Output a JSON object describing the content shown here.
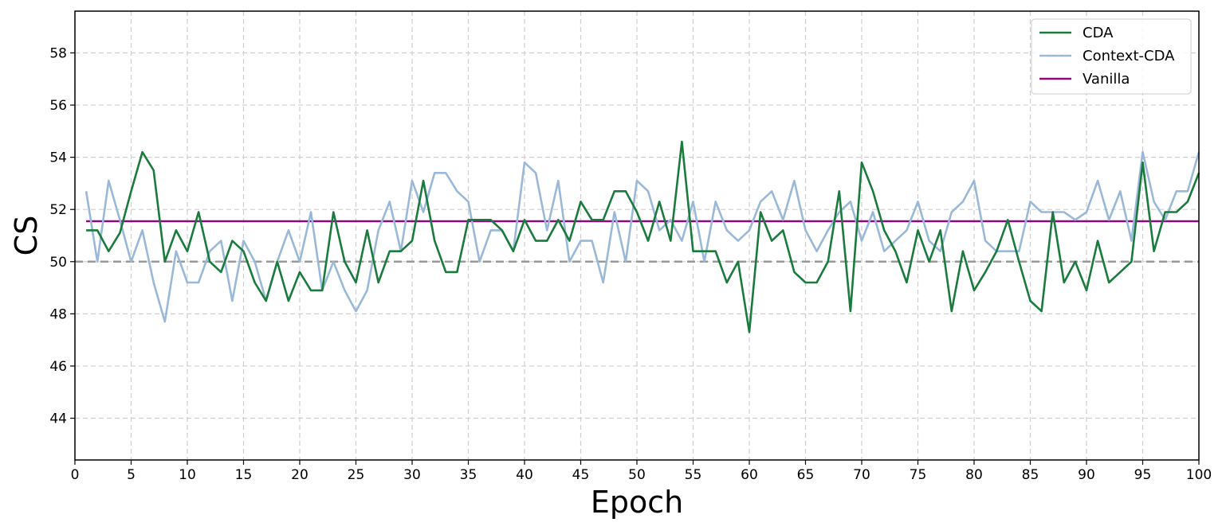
{
  "chart_data": {
    "type": "line",
    "xlabel": "Epoch",
    "ylabel": "CS",
    "xlim": [
      0,
      100
    ],
    "ylim": [
      42.4,
      59.6
    ],
    "xticks": [
      0,
      5,
      10,
      15,
      20,
      25,
      30,
      35,
      40,
      45,
      50,
      55,
      60,
      65,
      70,
      75,
      80,
      85,
      90,
      95,
      100
    ],
    "yticks": [
      44,
      46,
      48,
      50,
      52,
      54,
      56,
      58
    ],
    "grid": true,
    "legend_position": "top-right",
    "reference_line": {
      "y": 50,
      "style": "dashed",
      "color": "#999999"
    },
    "series": [
      {
        "name": "CDA",
        "color": "#1b7a3e",
        "x": [
          1,
          2,
          3,
          4,
          5,
          6,
          7,
          8,
          9,
          10,
          11,
          12,
          13,
          14,
          15,
          16,
          17,
          18,
          19,
          20,
          21,
          22,
          23,
          24,
          25,
          26,
          27,
          28,
          29,
          30,
          31,
          32,
          33,
          34,
          35,
          36,
          37,
          38,
          39,
          40,
          41,
          42,
          43,
          44,
          45,
          46,
          47,
          48,
          49,
          50,
          51,
          52,
          53,
          54,
          55,
          56,
          57,
          58,
          59,
          60,
          61,
          62,
          63,
          64,
          65,
          66,
          67,
          68,
          69,
          70,
          71,
          72,
          73,
          74,
          75,
          76,
          77,
          78,
          79,
          80,
          81,
          82,
          83,
          84,
          85,
          86,
          87,
          88,
          89,
          90,
          91,
          92,
          93,
          94,
          95,
          96,
          97,
          98,
          99,
          100
        ],
        "y": [
          51.2,
          51.2,
          50.4,
          51.1,
          52.7,
          54.2,
          53.5,
          50.0,
          51.2,
          50.4,
          51.9,
          50.0,
          49.6,
          50.8,
          50.4,
          49.2,
          48.5,
          50.0,
          48.5,
          49.6,
          48.9,
          48.9,
          51.9,
          50.0,
          49.2,
          51.2,
          49.2,
          50.4,
          50.4,
          50.8,
          53.1,
          50.8,
          49.6,
          49.6,
          51.6,
          51.6,
          51.6,
          51.2,
          50.4,
          51.6,
          50.8,
          50.8,
          51.6,
          50.8,
          52.3,
          51.6,
          51.6,
          52.7,
          52.7,
          51.9,
          50.8,
          52.3,
          50.8,
          54.6,
          50.4,
          50.4,
          50.4,
          49.2,
          50.0,
          47.3,
          51.9,
          50.8,
          51.2,
          49.6,
          49.2,
          49.2,
          50.0,
          52.7,
          48.1,
          53.8,
          52.7,
          51.2,
          50.4,
          49.2,
          51.2,
          50.0,
          51.2,
          48.1,
          50.4,
          48.9,
          49.6,
          50.4,
          51.6,
          50.0,
          48.5,
          48.1,
          51.9,
          49.2,
          50.0,
          48.9,
          50.8,
          49.2,
          49.6,
          50.0,
          53.8,
          50.4,
          51.9,
          51.9,
          52.3,
          53.4
        ]
      },
      {
        "name": "Context-CDA",
        "color": "#9ab8d8",
        "x": [
          1,
          2,
          3,
          4,
          5,
          6,
          7,
          8,
          9,
          10,
          11,
          12,
          13,
          14,
          15,
          16,
          17,
          18,
          19,
          20,
          21,
          22,
          23,
          24,
          25,
          26,
          27,
          28,
          29,
          30,
          31,
          32,
          33,
          34,
          35,
          36,
          37,
          38,
          39,
          40,
          41,
          42,
          43,
          44,
          45,
          46,
          47,
          48,
          49,
          50,
          51,
          52,
          53,
          54,
          55,
          56,
          57,
          58,
          59,
          60,
          61,
          62,
          63,
          64,
          65,
          66,
          67,
          68,
          69,
          70,
          71,
          72,
          73,
          74,
          75,
          76,
          77,
          78,
          79,
          80,
          81,
          82,
          83,
          84,
          85,
          86,
          87,
          88,
          89,
          90,
          91,
          92,
          93,
          94,
          95,
          96,
          97,
          98,
          99,
          100
        ],
        "y": [
          52.7,
          50.0,
          53.1,
          51.6,
          50.0,
          51.2,
          49.2,
          47.7,
          50.4,
          49.2,
          49.2,
          50.4,
          50.8,
          48.5,
          50.8,
          50.0,
          48.5,
          50.0,
          51.2,
          50.0,
          51.9,
          48.9,
          50.0,
          48.9,
          48.1,
          48.9,
          51.2,
          52.3,
          50.4,
          53.1,
          51.9,
          53.4,
          53.4,
          52.7,
          52.3,
          50.0,
          51.2,
          51.2,
          50.4,
          53.8,
          53.4,
          51.2,
          53.1,
          50.0,
          50.8,
          50.8,
          49.2,
          51.9,
          50.0,
          53.1,
          52.7,
          51.2,
          51.6,
          50.8,
          52.3,
          50.0,
          52.3,
          51.2,
          50.8,
          51.2,
          52.3,
          52.7,
          51.6,
          53.1,
          51.2,
          50.4,
          51.2,
          51.9,
          52.3,
          50.8,
          51.9,
          50.4,
          50.8,
          51.2,
          52.3,
          50.8,
          50.4,
          51.9,
          52.3,
          53.1,
          50.8,
          50.4,
          50.4,
          50.4,
          52.3,
          51.9,
          51.9,
          51.9,
          51.6,
          51.9,
          53.1,
          51.6,
          52.7,
          50.8,
          54.2,
          52.3,
          51.6,
          52.7,
          52.7,
          54.2
        ]
      },
      {
        "name": "Vanilla",
        "color": "#8b0a7a",
        "x": [
          1,
          100
        ],
        "y": [
          51.55,
          51.55
        ]
      }
    ]
  }
}
